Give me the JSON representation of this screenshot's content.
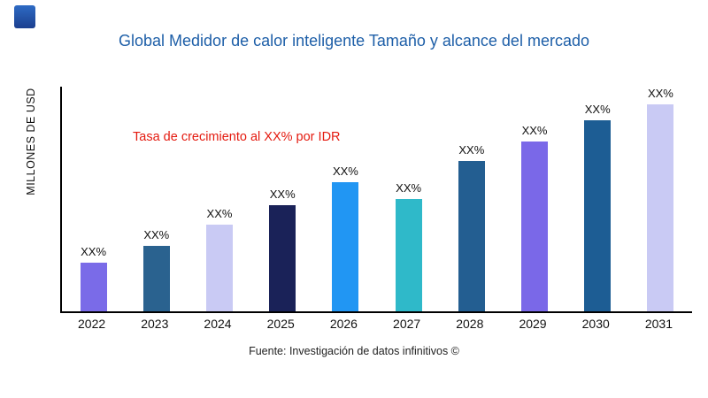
{
  "title": "Global Medidor de calor inteligente Tamaño y alcance del mercado",
  "title_color": "#1e5fa8",
  "ylabel": "MILLONES DE USD",
  "annotation": {
    "text": "Tasa de crecimiento al XX% por IDR",
    "color": "#e41a0f"
  },
  "source": "Fuente: Investigación de datos infinitivos ©",
  "chart_data": {
    "type": "bar",
    "categories": [
      "2022",
      "2023",
      "2024",
      "2025",
      "2026",
      "2027",
      "2028",
      "2029",
      "2030",
      "2031"
    ],
    "values": [
      23,
      31,
      41,
      50,
      61,
      53,
      71,
      80,
      90,
      100
    ],
    "value_labels": [
      "XX%",
      "XX%",
      "XX%",
      "XX%",
      "XX%",
      "XX%",
      "XX%",
      "XX%",
      "XX%",
      "XX%"
    ],
    "bar_colors": [
      "#7a6be8",
      "#2a628f",
      "#c9caf4",
      "#1a2258",
      "#2196f3",
      "#2fb9c9",
      "#235e91",
      "#7a68e8",
      "#1d5d94",
      "#c9caf4"
    ],
    "title": "Global Medidor de calor inteligente Tamaño y alcance del mercado",
    "xlabel": "",
    "ylabel": "MILLONES DE USD",
    "ylim": [
      0,
      100
    ],
    "grid": false,
    "legend": null,
    "values_are_estimates_from_pixels": true
  }
}
